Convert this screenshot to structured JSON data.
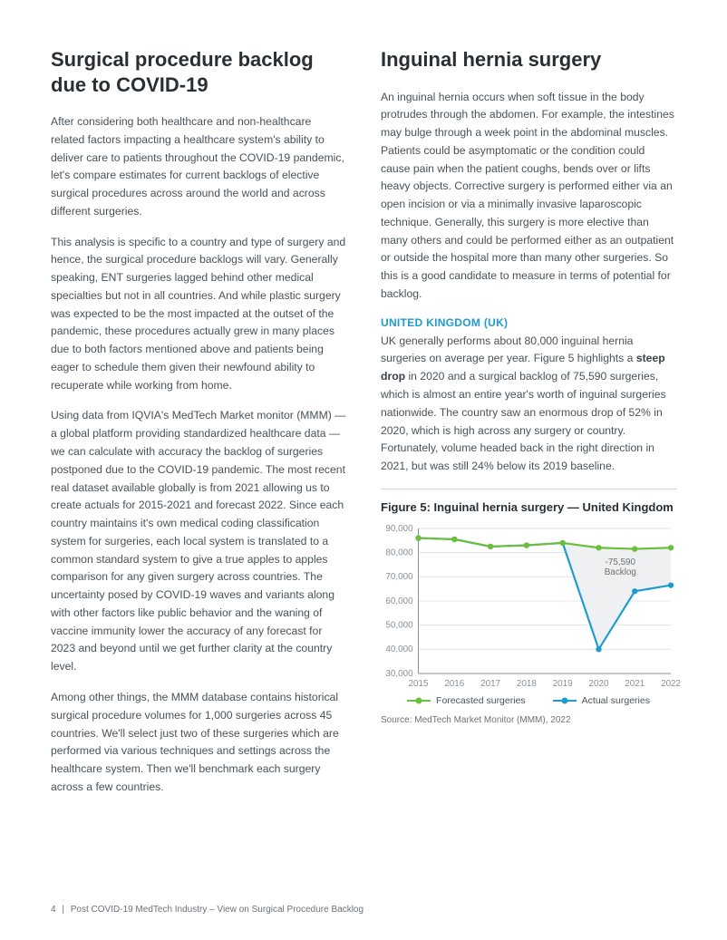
{
  "left": {
    "title": "Surgical procedure backlog due to COVID-19",
    "p1": "After considering both healthcare and non-healthcare related factors impacting a healthcare system's ability to deliver care to patients throughout the COVID-19 pandemic, let's compare estimates for current backlogs of elective surgical procedures across around the world and across different surgeries.",
    "p2": "This analysis is specific to a country and type of surgery and hence, the surgical procedure backlogs will vary. Generally speaking, ENT surgeries lagged behind other medical specialties but not in all countries. And while plastic surgery was expected to be the most impacted at the outset of the pandemic, these procedures actually grew in many places due to both factors mentioned above and patients being eager to schedule them given their newfound ability to recuperate while working from home.",
    "p3": "Using data from IQVIA's MedTech Market monitor (MMM) — a global platform providing standardized healthcare data — we can calculate with accuracy the backlog of surgeries postponed due to the COVID-19 pandemic. The most recent real dataset available globally is from 2021 allowing us to create actuals for 2015-2021 and forecast 2022. Since each country maintains it's own medical coding classification system for surgeries, each local system is translated to a common standard system to give a true apples to apples comparison for any given surgery across countries. The uncertainty posed by COVID-19 waves and variants along with other factors like public behavior and the waning of vaccine immunity lower the accuracy of any forecast for 2023 and beyond until we get further clarity at the country level.",
    "p4": "Among other things, the MMM database contains historical surgical procedure volumes for 1,000 surgeries across 45 countries. We'll select just two of these surgeries which are performed via various techniques and settings across the healthcare system. Then we'll benchmark each surgery across a few countries."
  },
  "right": {
    "title": "Inguinal hernia surgery",
    "p1": "An inguinal hernia occurs when soft tissue in the body protrudes through the abdomen. For example, the intestines may bulge through a week point in the abdominal muscles. Patients could be asymptomatic or the condition could cause pain when the patient coughs, bends over or lifts heavy objects. Corrective surgery is performed either via an open incision or via a minimally invasive laparoscopic technique. Generally, this surgery is more elective than many others and could be performed either as an outpatient or outside the hospital more than many other surgeries. So this is a good candidate to measure in terms of potential for backlog.",
    "uk_head": "UNITED KINGDOM (UK)",
    "uk_p_before_bold": "UK generally performs about 80,000 inguinal hernia surgeries on average per year. Figure 5 highlights a ",
    "uk_bold": "steep drop",
    "uk_p_after_bold": " in 2020 and a surgical backlog of 75,590 surgeries, which is almost an entire year's worth of inguinal surgeries nationwide. The country saw an enormous drop of 52% in 2020, which is high across any surgery or country. Fortunately, volume headed back in the right direction in 2021, but was still 24% below its 2019 baseline."
  },
  "chart": {
    "title": "Figure 5: Inguinal hernia surgery — United Kingdom",
    "type": "line",
    "ylim": [
      30000,
      90000
    ],
    "ytick_step": 10000,
    "ytick_labels": [
      "30,000",
      "40,000",
      "50,000",
      "60,000",
      "70,000",
      "80,000",
      "90,000"
    ],
    "categories": [
      "2015",
      "2016",
      "2017",
      "2018",
      "2019",
      "2020",
      "2021",
      "2022"
    ],
    "forecast_values": [
      86000,
      85500,
      82500,
      83000,
      84000,
      82000,
      81500,
      82000
    ],
    "actual_values": [
      86000,
      85500,
      82500,
      83000,
      84000,
      40000,
      64000,
      66500
    ],
    "forecast_color": "#6bbf3a",
    "actual_color": "#1e9bd0",
    "grid_color": "#dfe3e6",
    "axis_color": "#8a9096",
    "fill_color": "#eef0f1",
    "annotation_label": "-75,590",
    "annotation_sub": "Backlog",
    "annotation_color": "#6c7278",
    "label_fontsize": 10,
    "marker_radius": 3.2,
    "line_width": 2.2,
    "legend_forecast": "Forecasted surgeries",
    "legend_actual": "Actual surgeries",
    "source": "Source: MedTech Market Monitor (MMM), 2022"
  },
  "footer": {
    "page": "4",
    "title": "Post COVID-19 MedTech Industry – View on Surgical Procedure Backlog"
  }
}
